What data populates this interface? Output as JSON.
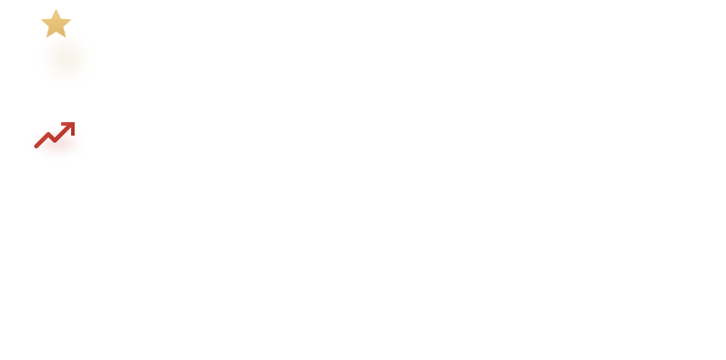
{
  "icons": [
    {
      "name": "star-icon",
      "color_top": "#efcf86",
      "color_bottom": "#ddb56b"
    },
    {
      "name": "trending-up-icon",
      "color_top": "#d54a3f",
      "color_bottom": "#a92d21"
    }
  ]
}
